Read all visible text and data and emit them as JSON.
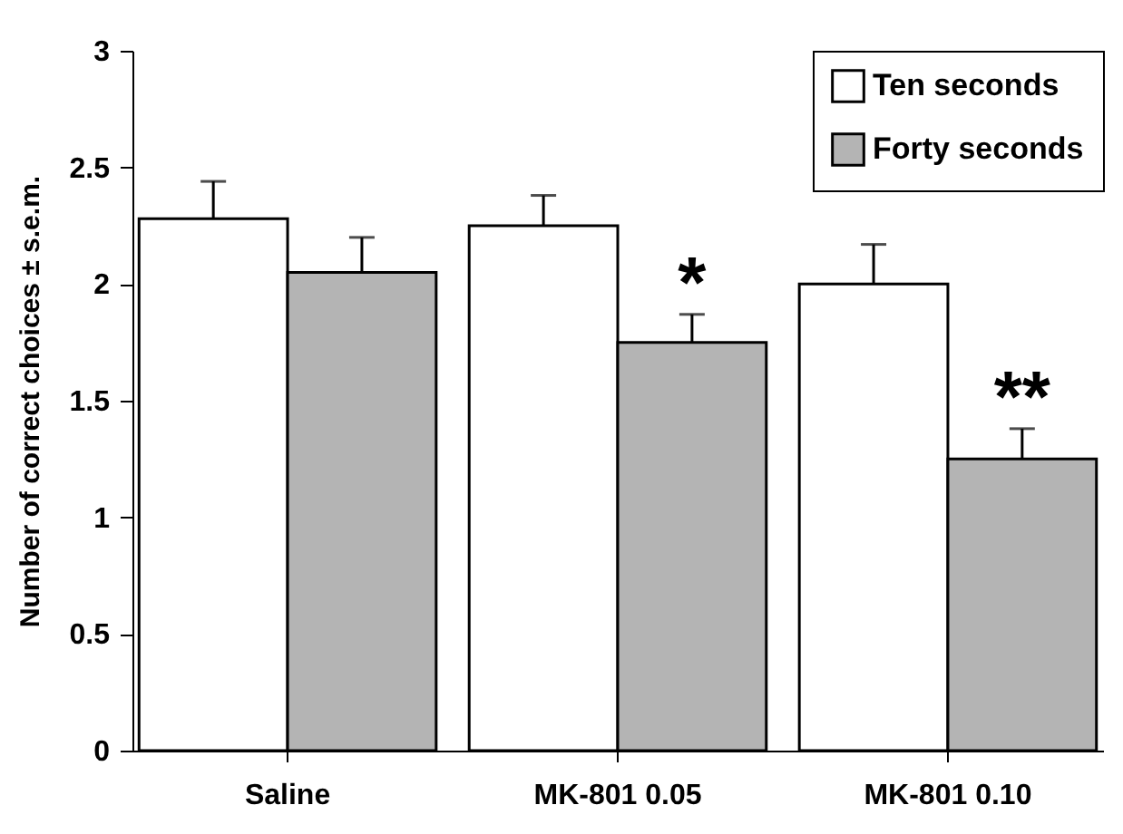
{
  "chart_data": {
    "type": "bar",
    "ylabel": "Number of correct choices ± s.e.m.",
    "categories": [
      "Saline",
      "MK-801 0.05",
      "MK-801 0.10"
    ],
    "series": [
      {
        "name": "Ten seconds",
        "color": "#ffffff",
        "values": [
          2.28,
          2.25,
          2.0
        ],
        "errors": [
          0.16,
          0.13,
          0.17
        ]
      },
      {
        "name": "Forty seconds",
        "color": "#b4b4b4",
        "values": [
          2.05,
          1.75,
          1.25
        ],
        "errors": [
          0.15,
          0.12,
          0.13
        ]
      }
    ],
    "ylim": [
      0,
      3
    ],
    "yticks": [
      0,
      0.5,
      1,
      1.5,
      2,
      2.5,
      3
    ],
    "grid": false,
    "legend": "top right",
    "annotations": [
      {
        "text": "*",
        "x": "MK-801 0.05",
        "y": 1.9
      },
      {
        "text": "**",
        "x": "MK-801 0.10",
        "y": 1.41
      }
    ]
  }
}
